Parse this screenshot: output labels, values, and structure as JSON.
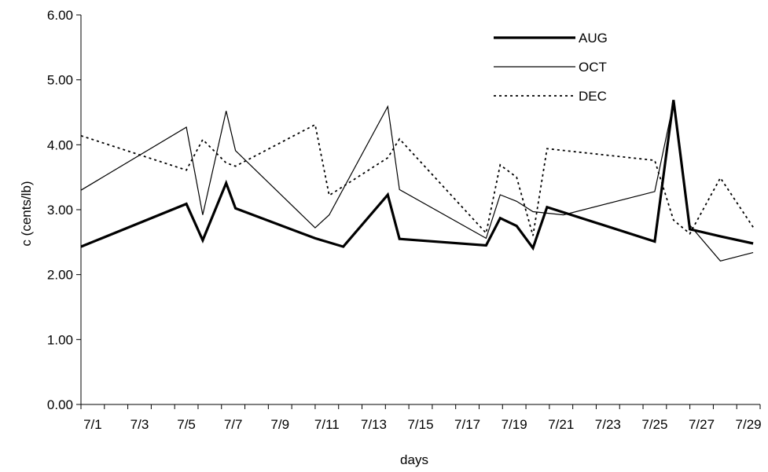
{
  "chart_data": {
    "type": "line",
    "xlabel": "days",
    "ylabel": "c (cents/lb)",
    "xlim": [
      1,
      30
    ],
    "ylim": [
      0,
      6
    ],
    "yticks": [
      "0.00",
      "1.00",
      "2.00",
      "3.00",
      "4.00",
      "5.00",
      "6.00"
    ],
    "xtick_labels": [
      "7/1",
      "7/3",
      "7/5",
      "7/7",
      "7/9",
      "7/11",
      "7/13",
      "7/15",
      "7/17",
      "7/19",
      "7/21",
      "7/23",
      "7/25",
      "7/27",
      "7/29"
    ],
    "legend_position": "top-right",
    "series": [
      {
        "name": "AUG",
        "style": "thick-solid",
        "color": "#000000",
        "x": [
          1,
          5.5,
          6.2,
          7.2,
          7.6,
          11,
          12.2,
          14.1,
          14.6,
          18.3,
          18.9,
          19.6,
          20.3,
          20.9,
          25.5,
          26.3,
          27,
          28.3,
          29.7
        ],
        "y": [
          2.43,
          3.09,
          2.53,
          3.41,
          3.02,
          2.56,
          2.43,
          3.23,
          2.55,
          2.45,
          2.87,
          2.75,
          2.41,
          3.04,
          2.51,
          4.69,
          2.7,
          2.59,
          2.48
        ]
      },
      {
        "name": "OCT",
        "style": "thin-solid",
        "color": "#000000",
        "x": [
          1,
          5.5,
          6.2,
          7.2,
          7.6,
          11,
          11.6,
          14.1,
          14.6,
          18.3,
          18.9,
          19.6,
          20.3,
          21.6,
          25.5,
          26.3,
          27,
          28.3,
          29.7
        ],
        "y": [
          3.3,
          4.27,
          2.92,
          4.52,
          3.91,
          2.72,
          2.92,
          4.59,
          3.31,
          2.56,
          3.23,
          3.13,
          2.97,
          2.92,
          3.28,
          4.65,
          2.76,
          2.21,
          2.34
        ]
      },
      {
        "name": "DEC",
        "style": "dotted",
        "color": "#000000",
        "x": [
          1,
          5.5,
          6.2,
          7.2,
          7.6,
          11,
          11.6,
          14.1,
          14.6,
          18.3,
          18.9,
          19.6,
          20.3,
          20.9,
          25.5,
          26.3,
          27,
          28.3,
          29.7
        ],
        "y": [
          4.14,
          3.61,
          4.08,
          3.72,
          3.67,
          4.31,
          3.22,
          3.8,
          4.09,
          2.64,
          3.69,
          3.5,
          2.6,
          3.94,
          3.76,
          2.84,
          2.63,
          3.49,
          2.73
        ]
      }
    ]
  }
}
